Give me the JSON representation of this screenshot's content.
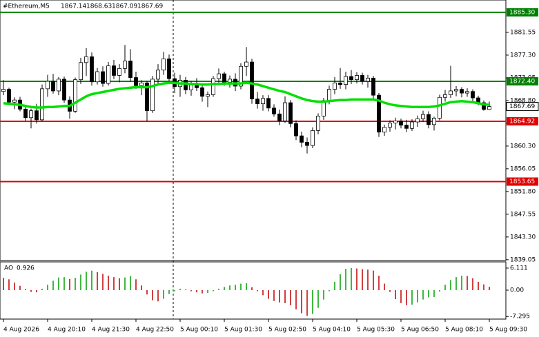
{
  "chart_data": {
    "type": "candlestick",
    "symbol": "#Ethereum,M5",
    "candles": [
      [
        1870.5,
        1872.6,
        1869.8,
        1870.9
      ],
      [
        1870.9,
        1871.2,
        1868.0,
        1868.5
      ],
      [
        1868.5,
        1869.4,
        1867.2,
        1868.9
      ],
      [
        1868.9,
        1869.5,
        1866.8,
        1867.2
      ],
      [
        1867.2,
        1867.8,
        1865.0,
        1865.6
      ],
      [
        1865.6,
        1867.3,
        1863.6,
        1866.9
      ],
      [
        1866.9,
        1868.2,
        1864.5,
        1865.2
      ],
      [
        1865.2,
        1871.8,
        1865.0,
        1871.0
      ],
      [
        1871.0,
        1873.6,
        1869.5,
        1872.4
      ],
      [
        1872.4,
        1873.8,
        1870.1,
        1870.6
      ],
      [
        1870.6,
        1873.2,
        1869.8,
        1872.8
      ],
      [
        1872.8,
        1873.3,
        1868.4,
        1868.9
      ],
      [
        1868.9,
        1869.6,
        1865.4,
        1866.8
      ],
      [
        1866.8,
        1873.1,
        1866.5,
        1872.7
      ],
      [
        1872.7,
        1876.8,
        1871.9,
        1875.9
      ],
      [
        1875.9,
        1878.6,
        1873.4,
        1877.0
      ],
      [
        1877.0,
        1877.8,
        1871.6,
        1872.3
      ],
      [
        1872.3,
        1874.9,
        1871.8,
        1874.2
      ],
      [
        1874.2,
        1875.2,
        1871.4,
        1872.0
      ],
      [
        1872.0,
        1876.0,
        1871.6,
        1875.3
      ],
      [
        1875.3,
        1876.4,
        1872.8,
        1873.5
      ],
      [
        1873.5,
        1875.6,
        1872.2,
        1874.8
      ],
      [
        1874.8,
        1879.2,
        1873.9,
        1876.2
      ],
      [
        1876.2,
        1878.4,
        1872.3,
        1873.1
      ],
      [
        1873.1,
        1874.2,
        1871.0,
        1871.6
      ],
      [
        1871.6,
        1872.6,
        1869.8,
        1872.1
      ],
      [
        1872.1,
        1872.5,
        1864.9,
        1866.9
      ],
      [
        1866.9,
        1873.4,
        1866.5,
        1872.8
      ],
      [
        1872.8,
        1875.6,
        1871.9,
        1874.5
      ],
      [
        1874.5,
        1877.9,
        1873.6,
        1876.6
      ],
      [
        1876.6,
        1877.4,
        1872.0,
        1872.9
      ],
      [
        1872.9,
        1874.0,
        1870.2,
        1871.4
      ],
      [
        1871.4,
        1873.6,
        1869.5,
        1872.6
      ],
      [
        1872.6,
        1873.2,
        1870.0,
        1870.8
      ],
      [
        1870.8,
        1872.5,
        1869.7,
        1871.9
      ],
      [
        1871.9,
        1873.0,
        1870.6,
        1871.2
      ],
      [
        1871.2,
        1871.8,
        1868.6,
        1869.6
      ],
      [
        1869.6,
        1870.5,
        1867.6,
        1869.9
      ],
      [
        1869.9,
        1873.4,
        1869.5,
        1872.9
      ],
      [
        1872.9,
        1874.8,
        1872.1,
        1873.8
      ],
      [
        1873.8,
        1874.2,
        1871.6,
        1872.2
      ],
      [
        1872.2,
        1873.5,
        1871.2,
        1872.8
      ],
      [
        1872.8,
        1873.9,
        1870.6,
        1871.5
      ],
      [
        1871.5,
        1875.8,
        1870.9,
        1875.2
      ],
      [
        1875.2,
        1878.8,
        1873.4,
        1876.0
      ],
      [
        1876.0,
        1876.6,
        1868.2,
        1869.1
      ],
      [
        1869.1,
        1870.4,
        1867.3,
        1868.2
      ],
      [
        1868.2,
        1869.8,
        1866.9,
        1869.2
      ],
      [
        1869.2,
        1869.8,
        1866.8,
        1867.4
      ],
      [
        1867.4,
        1868.1,
        1865.8,
        1866.3
      ],
      [
        1866.3,
        1867.1,
        1864.2,
        1865.0
      ],
      [
        1865.0,
        1869.6,
        1864.6,
        1868.4
      ],
      [
        1868.4,
        1868.9,
        1863.8,
        1864.5
      ],
      [
        1864.5,
        1865.1,
        1861.4,
        1862.2
      ],
      [
        1862.2,
        1863.0,
        1860.1,
        1861.0
      ],
      [
        1861.0,
        1861.9,
        1858.9,
        1860.4
      ],
      [
        1860.4,
        1863.8,
        1859.9,
        1863.2
      ],
      [
        1863.2,
        1866.4,
        1862.5,
        1865.9
      ],
      [
        1865.9,
        1869.3,
        1865.2,
        1868.8
      ],
      [
        1868.8,
        1871.6,
        1868.1,
        1870.9
      ],
      [
        1870.9,
        1873.2,
        1870.0,
        1872.1
      ],
      [
        1872.1,
        1874.9,
        1871.0,
        1871.8
      ],
      [
        1871.8,
        1874.2,
        1870.9,
        1873.3
      ],
      [
        1873.3,
        1874.5,
        1871.9,
        1872.7
      ],
      [
        1872.7,
        1874.1,
        1872.0,
        1873.5
      ],
      [
        1873.5,
        1874.0,
        1871.8,
        1872.4
      ],
      [
        1872.4,
        1873.6,
        1871.2,
        1873.0
      ],
      [
        1873.0,
        1873.4,
        1869.0,
        1869.8
      ],
      [
        1869.8,
        1870.2,
        1862.0,
        1862.9
      ],
      [
        1862.9,
        1864.3,
        1862.2,
        1863.8
      ],
      [
        1863.8,
        1865.1,
        1863.0,
        1864.6
      ],
      [
        1864.6,
        1865.6,
        1863.4,
        1865.0
      ],
      [
        1865.0,
        1865.4,
        1863.6,
        1864.2
      ],
      [
        1864.2,
        1865.2,
        1862.9,
        1863.6
      ],
      [
        1863.6,
        1865.3,
        1863.1,
        1864.8
      ],
      [
        1864.8,
        1866.0,
        1863.9,
        1865.4
      ],
      [
        1865.4,
        1866.9,
        1864.8,
        1866.2
      ],
      [
        1866.2,
        1866.8,
        1863.6,
        1864.3
      ],
      [
        1864.3,
        1865.8,
        1863.2,
        1865.5
      ],
      [
        1865.5,
        1869.9,
        1865.1,
        1869.4
      ],
      [
        1869.4,
        1870.8,
        1868.6,
        1869.9
      ],
      [
        1869.9,
        1875.3,
        1869.3,
        1870.6
      ],
      [
        1870.6,
        1871.5,
        1869.6,
        1870.9
      ],
      [
        1870.9,
        1871.3,
        1869.4,
        1870.2
      ],
      [
        1870.2,
        1871.1,
        1869.5,
        1870.5
      ],
      [
        1870.5,
        1870.9,
        1868.7,
        1869.3
      ],
      [
        1869.3,
        1869.7,
        1867.9,
        1868.4
      ],
      [
        1868.4,
        1868.8,
        1866.9,
        1867.14
      ],
      [
        1867.14,
        1868.63,
        1867.09,
        1867.69
      ]
    ],
    "ma": {
      "color": "#00e000",
      "values": [
        1868.3,
        1868.2,
        1868.1,
        1868.0,
        1867.8,
        1867.6,
        1867.5,
        1867.5,
        1867.6,
        1867.6,
        1867.7,
        1867.8,
        1867.8,
        1868.4,
        1869.0,
        1869.6,
        1870.0,
        1870.2,
        1870.4,
        1870.6,
        1870.8,
        1871.0,
        1871.1,
        1871.2,
        1871.3,
        1871.3,
        1871.3,
        1871.5,
        1871.8,
        1872.0,
        1872.1,
        1872.1,
        1872.0,
        1872.0,
        1871.9,
        1871.9,
        1871.8,
        1871.8,
        1871.9,
        1871.9,
        1872.0,
        1872.0,
        1872.0,
        1872.0,
        1872.1,
        1872.0,
        1871.8,
        1871.5,
        1871.2,
        1870.9,
        1870.6,
        1870.4,
        1870.0,
        1869.6,
        1869.2,
        1868.9,
        1868.7,
        1868.6,
        1868.6,
        1868.7,
        1868.8,
        1868.9,
        1868.9,
        1869.0,
        1869.0,
        1869.0,
        1869.0,
        1869.0,
        1868.8,
        1868.4,
        1868.1,
        1867.9,
        1867.8,
        1867.7,
        1867.6,
        1867.6,
        1867.6,
        1867.6,
        1867.7,
        1867.9,
        1868.2,
        1868.5,
        1868.6,
        1868.7,
        1868.6,
        1868.5,
        1868.3,
        1868.1,
        1868.0
      ]
    },
    "categories": [
      "4 Aug 2026",
      null,
      null,
      null,
      null,
      null,
      null,
      null,
      "4 Aug 20:10",
      null,
      null,
      null,
      null,
      null,
      null,
      null,
      "4 Aug 21:30",
      null,
      null,
      null,
      null,
      null,
      null,
      null,
      "4 Aug 22:50",
      null,
      null,
      null,
      null,
      null,
      null,
      null,
      "5 Aug 00:10",
      null,
      null,
      null,
      null,
      null,
      null,
      null,
      "5 Aug 01:30",
      null,
      null,
      null,
      null,
      null,
      null,
      null,
      "5 Aug 02:50",
      null,
      null,
      null,
      null,
      null,
      null,
      null,
      "5 Aug 04:10",
      null,
      null,
      null,
      null,
      null,
      null,
      null,
      "5 Aug 05:30",
      null,
      null,
      null,
      null,
      null,
      null,
      null,
      "5 Aug 06:50",
      null,
      null,
      null,
      null,
      null,
      null,
      null,
      "5 Aug 08:10",
      null,
      null,
      null,
      null,
      null,
      null,
      null,
      "5 Aug 09:30"
    ],
    "ylim": [
      1838.9,
      1887.6
    ],
    "yticks": [
      1839.05,
      {
        "value": 1843.3,
        "label": "1843.30"
      },
      1847.55,
      {
        "value": 1851.8,
        "label": "1851.80"
      },
      1856.05,
      {
        "value": 1860.3,
        "label": "1860.30"
      },
      1864.55,
      {
        "value": 1868.8,
        "label": "1868.80"
      },
      1873.05,
      {
        "value": 1877.3,
        "label": "1877.30"
      },
      1881.55
    ],
    "levels": [
      {
        "value": 1885.3,
        "label": "1885.30",
        "color": "#008000"
      },
      {
        "value": 1872.4,
        "label": "1872.40",
        "color": "#008000"
      },
      {
        "value": 1864.92,
        "label": "1864.92",
        "color": "#e00000"
      },
      {
        "value": 1853.65,
        "label": "1853.65",
        "color": "#e00000"
      }
    ],
    "ao": {
      "name": "AO",
      "up_color": "#00a000",
      "down_color": "#c00000",
      "values": [
        3.4,
        3.0,
        2.1,
        1.2,
        0.3,
        -0.5,
        -0.6,
        0.4,
        1.5,
        2.6,
        3.5,
        3.6,
        3.1,
        3.4,
        4.3,
        5.1,
        5.4,
        5.0,
        4.5,
        4.0,
        3.6,
        3.3,
        3.5,
        3.9,
        3.0,
        1.3,
        -1.2,
        -2.8,
        -3.1,
        -2.4,
        -1.1,
        -0.3,
        0.4,
        0.2,
        -0.3,
        -0.6,
        -0.9,
        -0.8,
        -0.3,
        0.4,
        0.9,
        1.3,
        1.5,
        1.8,
        1.9,
        0.8,
        -0.3,
        -1.4,
        -2.4,
        -3.0,
        -3.4,
        -3.6,
        -4.2,
        -5.3,
        -6.4,
        -7.1,
        -6.6,
        -4.9,
        -2.6,
        -0.3,
        2.3,
        4.4,
        5.9,
        6.1,
        6.0,
        5.8,
        5.7,
        5.4,
        4.0,
        1.8,
        -0.5,
        -2.5,
        -3.6,
        -4.2,
        -4.0,
        -3.4,
        -2.6,
        -2.0,
        -1.9,
        -0.4,
        1.5,
        2.8,
        3.6,
        4.0,
        3.9,
        3.3,
        2.3,
        1.6,
        0.926
      ],
      "ylim": [
        -7.82,
        7.44
      ],
      "yticks": [
        6.111,
        {
          "value": 0,
          "label": "0.00"
        },
        -7.295
      ]
    }
  }
}
